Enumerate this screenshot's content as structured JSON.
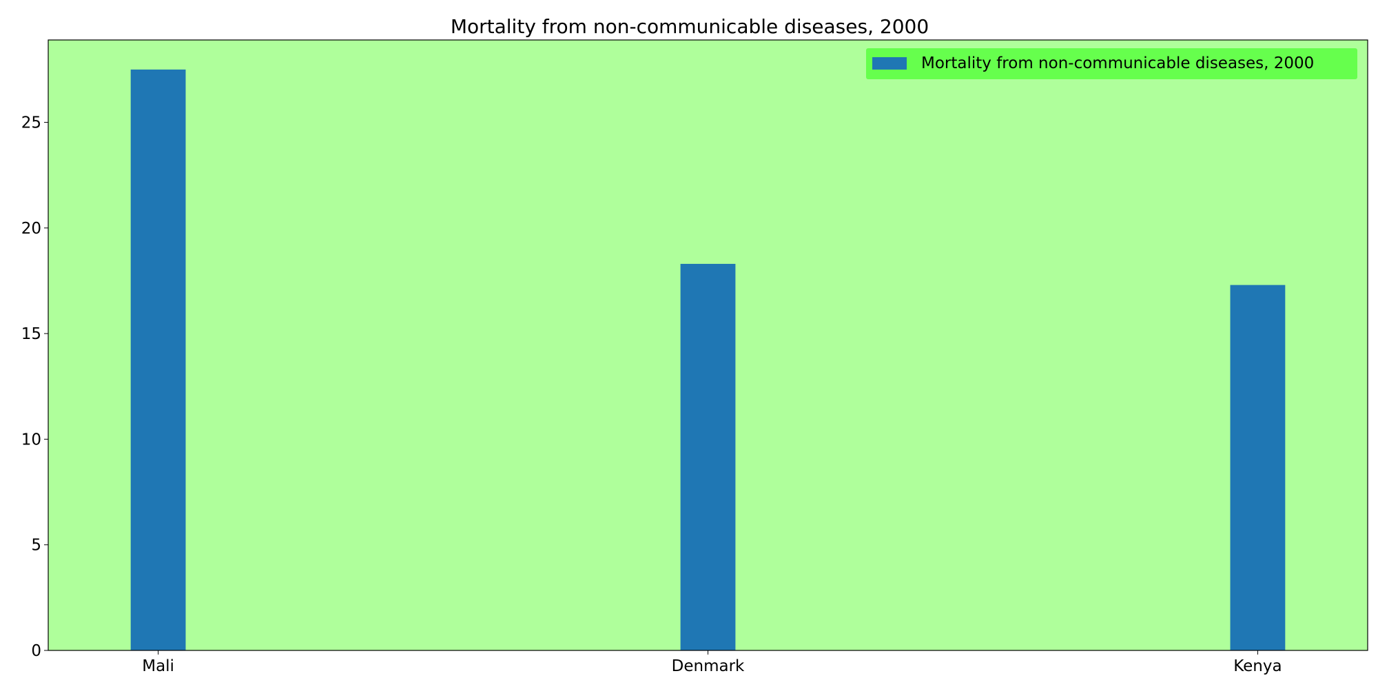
{
  "chart_data": {
    "type": "bar",
    "title": "Mortality from non-communicable diseases, 2000",
    "xlabel": "",
    "ylabel": "",
    "categories": [
      "Mali",
      "Denmark",
      "Kenya"
    ],
    "series": [
      {
        "name": "Mortality from non-communicable diseases, 2000",
        "values": [
          27.5,
          18.3,
          17.3
        ]
      }
    ],
    "ylim": [
      0,
      28.9
    ],
    "yticks": [
      0,
      5,
      10,
      15,
      20,
      25
    ],
    "grid": false,
    "legend_position": "top-right",
    "colors": {
      "plot_background": "#afff9b",
      "legend_background": "#66ff4d",
      "bar": "#1f77b4",
      "axis": "#000000"
    }
  }
}
